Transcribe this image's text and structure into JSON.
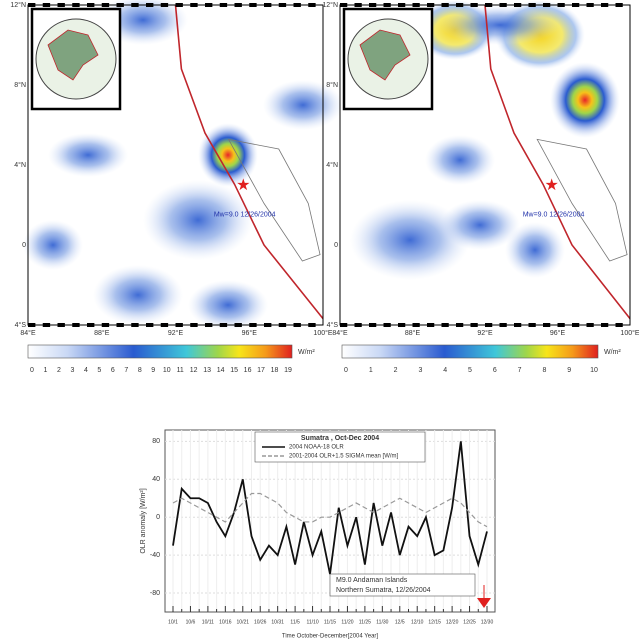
{
  "maps": [
    {
      "lat_labels": [
        "12°N",
        "8°N",
        "4°N",
        "0",
        "4°S"
      ],
      "lon_labels": [
        "84°E",
        "88°E",
        "92°E",
        "96°E",
        "100°E"
      ],
      "annotation": "Mw=9.0 12/26/2004",
      "colorbar": {
        "ticks": [
          "0",
          "1",
          "2",
          "3",
          "4",
          "5",
          "6",
          "7",
          "8",
          "9",
          "10",
          "11",
          "12",
          "13",
          "14",
          "15",
          "16",
          "17",
          "18",
          "19"
        ],
        "unit": "W/m²"
      }
    },
    {
      "lat_labels": [
        "12°N",
        "8°N",
        "4°N",
        "0",
        "4°S"
      ],
      "lon_labels": [
        "84°E",
        "88°E",
        "92°E",
        "96°E",
        "100°E"
      ],
      "annotation": "Mw=9.0 12/26/2004",
      "colorbar": {
        "ticks": [
          "0",
          "1",
          "2",
          "3",
          "4",
          "5",
          "6",
          "7",
          "8",
          "9",
          "10"
        ],
        "unit": "W/m²"
      }
    }
  ],
  "chart_data": {
    "type": "line",
    "title": "Sumatra , Oct-Dec 2004",
    "x_label": "Time October-December[2004 Year]",
    "y_label": "OLR anomaly [W/m²]",
    "categories": [
      "10/1",
      null,
      "10/6",
      null,
      "10/11",
      null,
      "10/16",
      null,
      "10/21",
      null,
      "10/26",
      null,
      "10/31",
      null,
      "11/5",
      null,
      "11/10",
      null,
      "11/15",
      null,
      "11/20",
      null,
      "11/25",
      null,
      "11/30",
      null,
      "12/5",
      null,
      "12/10",
      null,
      "12/15",
      null,
      "12/20",
      null,
      "12/25",
      null,
      "12/30"
    ],
    "series": [
      {
        "name": "2004 NOAA-18 OLR",
        "color": "#111111",
        "dash": false,
        "values": [
          -30,
          30,
          20,
          20,
          15,
          -5,
          -20,
          5,
          40,
          -20,
          -45,
          -30,
          -40,
          -10,
          -50,
          -5,
          -40,
          -15,
          -60,
          10,
          -30,
          0,
          -50,
          15,
          -30,
          5,
          -40,
          -10,
          -20,
          0,
          -40,
          -35,
          10,
          80,
          -20,
          -50,
          -15
        ]
      },
      {
        "name": "2001-2004 OLR+1.5 SIGMA mean [W/m]",
        "color": "#999999",
        "dash": true,
        "values": [
          15,
          20,
          15,
          10,
          5,
          0,
          -5,
          5,
          15,
          25,
          25,
          20,
          15,
          5,
          0,
          -5,
          -5,
          0,
          0,
          5,
          10,
          15,
          10,
          5,
          10,
          15,
          20,
          15,
          10,
          5,
          10,
          15,
          20,
          15,
          5,
          -5,
          -10
        ]
      }
    ],
    "annotation": [
      "M9.0  Andaman Islands",
      "Northern Sumatra, 12/26/2004"
    ],
    "ylim": [
      -100,
      92
    ],
    "yticks": [
      80,
      40,
      0,
      -40,
      -80
    ],
    "grid": true
  }
}
